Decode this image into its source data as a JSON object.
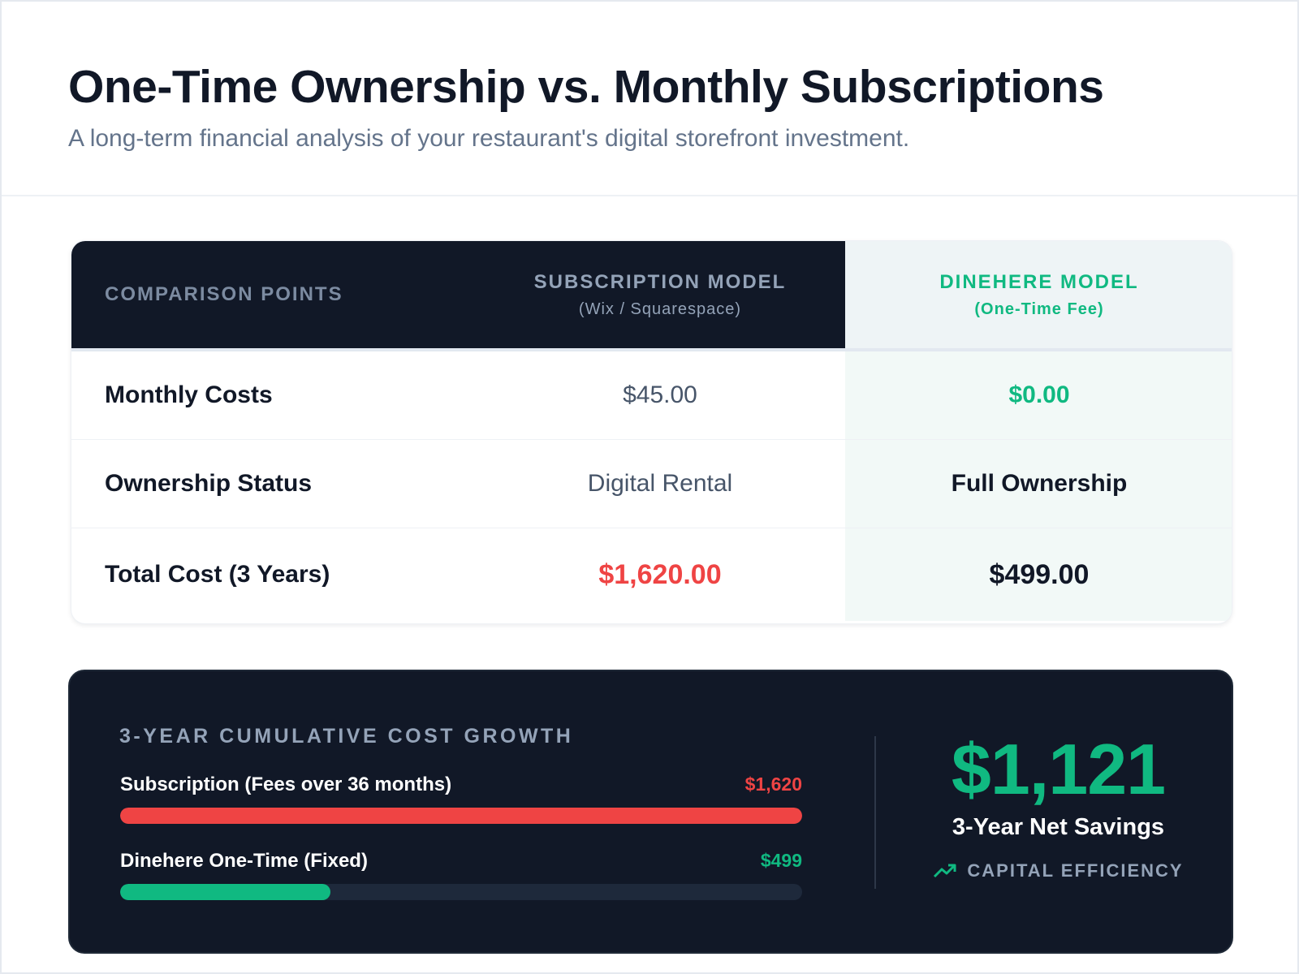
{
  "header": {
    "title": "One-Time Ownership vs. Monthly Subscriptions",
    "subtitle": "A long-term financial analysis of your restaurant's digital storefront investment."
  },
  "table": {
    "headers": [
      {
        "label": "COMPARISON POINTS"
      },
      {
        "label": "SUBSCRIPTION MODEL",
        "sublabel": "(Wix / Squarespace)"
      },
      {
        "label": "DINEHERE MODEL",
        "sublabel": "(One-Time Fee)"
      }
    ],
    "rows": [
      [
        "Monthly Costs",
        "$45.00",
        "$0.00"
      ],
      [
        "Ownership Status",
        "Digital Rental",
        "Full Ownership"
      ],
      [
        "Total Cost (3 Years)",
        "$1,620.00",
        "$499.00"
      ]
    ]
  },
  "growth": {
    "title": "3-YEAR CUMULATIVE COST GROWTH",
    "bars": [
      {
        "label": "Subscription (Fees over 36 months)",
        "value": 1620,
        "value_label": "$1,620",
        "color": "#ef4444"
      },
      {
        "label": "Dinehere One-Time (Fixed)",
        "value": 499,
        "value_label": "$499",
        "color": "#10b981"
      }
    ]
  },
  "savings": {
    "amount": "$1,121",
    "label": "3-Year Net Savings",
    "badge": "CAPITAL EFFICIENCY"
  }
}
